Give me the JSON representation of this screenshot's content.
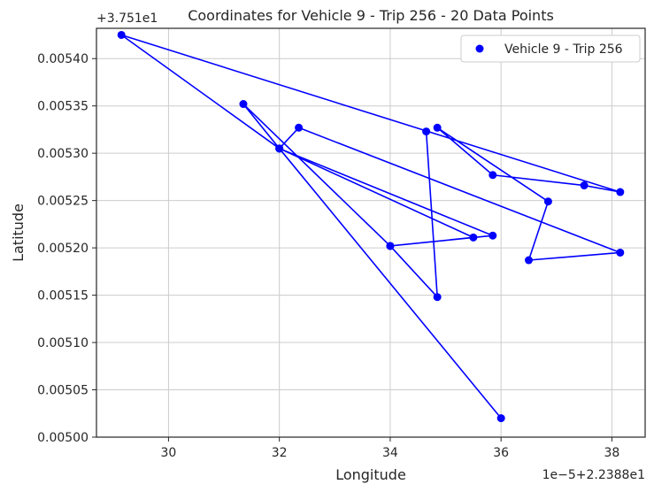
{
  "chart_data": {
    "type": "line",
    "title": "Coordinates for Vehicle 9 - Trip 256 - 20 Data Points",
    "xlabel": "Longitude",
    "ylabel": "Latitude",
    "x_offset_label": "1e−5+2.2388e1",
    "y_offset_label": "+3.751e1",
    "xlim": [
      28.7,
      38.6
    ],
    "ylim": [
      0.005,
      0.005432
    ],
    "x_ticks": [
      30,
      32,
      34,
      36,
      38
    ],
    "x_tick_labels": [
      "30",
      "32",
      "34",
      "36",
      "38"
    ],
    "y_ticks": [
      0.005,
      0.00505,
      0.0051,
      0.00515,
      0.0052,
      0.00525,
      0.0053,
      0.00535,
      0.0054
    ],
    "y_tick_labels": [
      "0.00500",
      "0.00505",
      "0.00510",
      "0.00515",
      "0.00520",
      "0.00525",
      "0.00530",
      "0.00535",
      "0.00540"
    ],
    "grid": true,
    "legend_position": "top-right",
    "series": [
      {
        "name": "Vehicle 9 - Trip 256",
        "color": "#0000ff",
        "x": [
          36.0,
          32.0,
          31.35,
          34.0,
          35.85,
          32.0,
          29.15,
          38.15,
          37.5,
          35.85,
          34.85,
          36.85,
          36.5,
          38.15,
          32.35,
          32.0,
          35.5,
          34.0,
          34.85,
          34.65
        ],
        "y": [
          0.00502,
          0.005305,
          0.005352,
          0.005202,
          0.005213,
          0.005305,
          0.005425,
          0.005259,
          0.005266,
          0.005277,
          0.005327,
          0.005249,
          0.005187,
          0.005195,
          0.005327,
          0.005305,
          0.005211,
          0.005202,
          0.005148,
          0.005323
        ]
      }
    ]
  }
}
